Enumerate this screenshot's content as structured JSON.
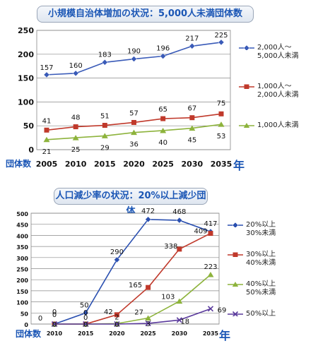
{
  "chart_data": [
    {
      "type": "line",
      "title": "小規模自治体増加の状況：5,000人未満団体数",
      "ylabel": "団体数",
      "xlabel": "年",
      "categories": [
        "2005",
        "2010",
        "2015",
        "2020",
        "2025",
        "2030",
        "2035"
      ],
      "ylim": [
        0,
        250
      ],
      "yticks": [
        0,
        50,
        100,
        150,
        200,
        250
      ],
      "grid": true,
      "legend_position": "right",
      "series": [
        {
          "name": "2,000人～\n5,000人未満",
          "values": [
            157,
            160,
            183,
            190,
            196,
            217,
            225
          ],
          "color": "#3a5bb8",
          "marker": "diamond"
        },
        {
          "name": "1,000人～\n2,000人未満",
          "values": [
            41,
            48,
            51,
            57,
            65,
            67,
            75
          ],
          "color": "#c0392b",
          "marker": "square"
        },
        {
          "name": "1,000人未満",
          "values": [
            21,
            25,
            29,
            36,
            40,
            45,
            53
          ],
          "color": "#8db33c",
          "marker": "triangle"
        }
      ]
    },
    {
      "type": "line",
      "title": "人口減少率の状況：20%以上減少団体",
      "ylabel": "団体数",
      "xlabel": "年",
      "categories": [
        "2010",
        "2015",
        "2020",
        "2025",
        "2030",
        "2035"
      ],
      "ylim": [
        0,
        500
      ],
      "yticks": [
        0,
        50,
        100,
        150,
        200,
        250,
        300,
        350,
        400,
        450,
        500
      ],
      "grid": true,
      "legend_position": "right",
      "series": [
        {
          "name": "20%以上\n30%未満",
          "values": [
            0,
            50,
            290,
            472,
            468,
            417
          ],
          "color": "#2a4fb0",
          "marker": "diamond"
        },
        {
          "name": "30%以上\n40%未満",
          "values": [
            0,
            0,
            42,
            165,
            338,
            409
          ],
          "color": "#c0392b",
          "marker": "square"
        },
        {
          "name": "40%以上\n50%未満",
          "values": [
            0,
            0,
            2,
            27,
            103,
            223
          ],
          "color": "#8db33c",
          "marker": "triangle"
        },
        {
          "name": "50%以上",
          "values": [
            0,
            0,
            0,
            3,
            18,
            69
          ],
          "color": "#5a3a9c",
          "marker": "x"
        }
      ]
    }
  ]
}
